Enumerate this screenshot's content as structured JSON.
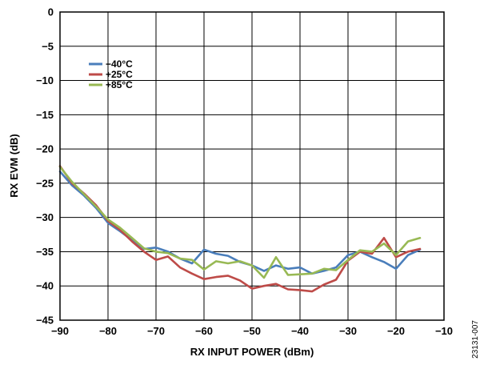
{
  "chart_data": {
    "type": "line",
    "xlabel": "RX INPUT POWER (dBm)",
    "ylabel": "RX EVM (dB)",
    "xlim": [
      -90,
      -10
    ],
    "ylim": [
      -45,
      0
    ],
    "x_ticks": [
      -90,
      -80,
      -70,
      -60,
      -50,
      -40,
      -30,
      -20,
      -10
    ],
    "y_ticks": [
      0,
      -5,
      -10,
      -15,
      -20,
      -25,
      -30,
      -35,
      -40,
      -45
    ],
    "x_tick_labels": [
      "−90",
      "−80",
      "−70",
      "−60",
      "−50",
      "−40",
      "−30",
      "−20",
      "−10"
    ],
    "y_tick_labels": [
      "0",
      "−5",
      "−10",
      "−15",
      "−20",
      "−25",
      "−30",
      "−35",
      "−40",
      "−45"
    ],
    "grid": true,
    "legend_position": "top-left",
    "x": [
      -90,
      -87.5,
      -85,
      -82.5,
      -80,
      -77.5,
      -75,
      -72.5,
      -70,
      -67.5,
      -65,
      -62.5,
      -60,
      -57.5,
      -55,
      -52.5,
      -50,
      -47.5,
      -45,
      -42.5,
      -40,
      -37.5,
      -35,
      -32.5,
      -30,
      -27.5,
      -25,
      -22.5,
      -20,
      -17.5,
      -15
    ],
    "series": [
      {
        "name": "−40°C",
        "color": "#4a7ebb",
        "values": [
          -23.3,
          -25.3,
          -26.8,
          -28.6,
          -30.8,
          -32.0,
          -33.3,
          -34.6,
          -34.4,
          -35.0,
          -36.0,
          -36.7,
          -34.7,
          -35.3,
          -35.6,
          -36.5,
          -37.0,
          -37.8,
          -37.0,
          -37.5,
          -37.3,
          -38.2,
          -37.8,
          -37.3,
          -35.5,
          -35.0,
          -35.8,
          -36.5,
          -37.5,
          -35.5,
          -34.7
        ]
      },
      {
        "name": "+25°C",
        "color": "#be4b48",
        "values": [
          -22.5,
          -25.0,
          -26.5,
          -28.2,
          -30.5,
          -31.8,
          -33.5,
          -35.0,
          -36.2,
          -35.7,
          -37.3,
          -38.2,
          -39.0,
          -38.7,
          -38.5,
          -39.2,
          -40.4,
          -40.0,
          -39.7,
          -40.5,
          -40.6,
          -40.8,
          -39.8,
          -39.1,
          -36.3,
          -35.0,
          -35.3,
          -33.0,
          -35.8,
          -35.0,
          -34.6
        ]
      },
      {
        "name": "+85°C",
        "color": "#98b954",
        "values": [
          -22.6,
          -24.8,
          -26.6,
          -28.4,
          -30.3,
          -31.5,
          -33.0,
          -34.5,
          -35.0,
          -35.2,
          -36.0,
          -36.2,
          -37.6,
          -36.4,
          -36.7,
          -36.4,
          -37.0,
          -38.8,
          -35.8,
          -38.4,
          -38.3,
          -38.2,
          -37.5,
          -37.7,
          -36.2,
          -34.8,
          -35.0,
          -33.8,
          -35.5,
          -33.5,
          -33.0
        ]
      }
    ]
  },
  "figure_id": "23131-007"
}
